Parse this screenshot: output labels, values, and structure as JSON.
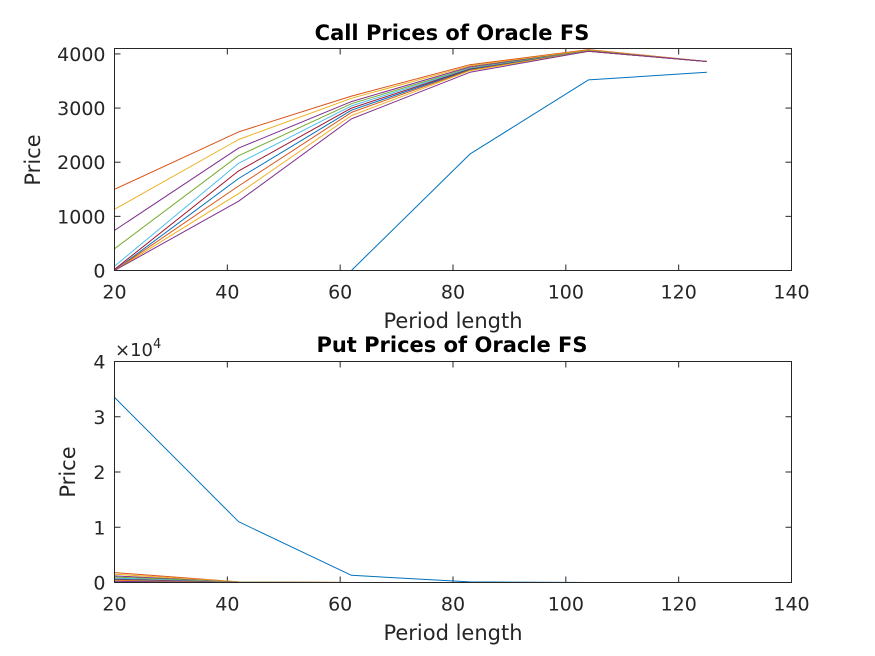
{
  "chart_data": [
    {
      "type": "line",
      "title": "Call Prices of Oracle FS",
      "xlabel": "Period length",
      "ylabel": "Price",
      "xlim": [
        20,
        140
      ],
      "ylim": [
        0,
        4100
      ],
      "x": [
        20,
        42,
        62,
        83,
        104,
        125
      ],
      "xticks": [
        20,
        40,
        60,
        80,
        100,
        120,
        140
      ],
      "xtick_labels": [
        "20",
        "40",
        "60",
        "80",
        "100",
        "120",
        "140"
      ],
      "yticks": [
        0,
        1000,
        2000,
        3000,
        4000
      ],
      "ytick_labels": [
        "0",
        "1000",
        "2000",
        "3000",
        "4000"
      ],
      "grid": false,
      "series": [
        {
          "color": "#0072BD",
          "values": [
            0,
            0,
            0,
            2150,
            3520,
            3660
          ]
        },
        {
          "color": "#D95319",
          "values": [
            1500,
            2560,
            3220,
            3800,
            4080,
            3860
          ]
        },
        {
          "color": "#EDB120",
          "values": [
            1130,
            2420,
            3180,
            3780,
            4070,
            3860
          ]
        },
        {
          "color": "#7E2F8E",
          "values": [
            740,
            2260,
            3120,
            3760,
            4060,
            3860
          ]
        },
        {
          "color": "#77AC30",
          "values": [
            400,
            2120,
            3080,
            3740,
            4060,
            3860
          ]
        },
        {
          "color": "#4DBEEE",
          "values": [
            80,
            1980,
            3040,
            3730,
            4050,
            3860
          ]
        },
        {
          "color": "#A2142F",
          "values": [
            20,
            1840,
            3000,
            3720,
            4050,
            3860
          ]
        },
        {
          "color": "#0072BD",
          "values": [
            0,
            1700,
            2960,
            3710,
            4050,
            3860
          ]
        },
        {
          "color": "#D95319",
          "values": [
            0,
            1560,
            2920,
            3700,
            4050,
            3860
          ]
        },
        {
          "color": "#EDB120",
          "values": [
            0,
            1420,
            2860,
            3690,
            4050,
            3860
          ]
        },
        {
          "color": "#7E2F8E",
          "values": [
            0,
            1280,
            2800,
            3660,
            4050,
            3860
          ]
        }
      ]
    },
    {
      "type": "line",
      "title": "Put Prices of Oracle FS",
      "xlabel": "Period length",
      "ylabel": "Price",
      "y_exponent_base": "×10",
      "y_exponent_power": "4",
      "xlim": [
        20,
        140
      ],
      "ylim": [
        0,
        4
      ],
      "x": [
        20,
        42,
        62,
        83,
        104,
        125
      ],
      "xticks": [
        20,
        40,
        60,
        80,
        100,
        120,
        140
      ],
      "xtick_labels": [
        "20",
        "40",
        "60",
        "80",
        "100",
        "120",
        "140"
      ],
      "yticks": [
        0,
        1,
        2,
        3,
        4
      ],
      "ytick_labels": [
        "0",
        "1",
        "2",
        "3",
        "4"
      ],
      "grid": false,
      "series": [
        {
          "color": "#0072BD",
          "values": [
            3.35,
            1.1,
            0.13,
            0.01,
            0.0,
            0.0
          ]
        },
        {
          "color": "#D95319",
          "values": [
            0.18,
            0.01,
            0.0,
            0.0,
            0.0,
            0.0
          ]
        },
        {
          "color": "#EDB120",
          "values": [
            0.15,
            0.01,
            0.0,
            0.0,
            0.0,
            0.0
          ]
        },
        {
          "color": "#7E2F8E",
          "values": [
            0.12,
            0.005,
            0.0,
            0.0,
            0.0,
            0.0
          ]
        },
        {
          "color": "#77AC30",
          "values": [
            0.1,
            0.005,
            0.0,
            0.0,
            0.0,
            0.0
          ]
        },
        {
          "color": "#4DBEEE",
          "values": [
            0.08,
            0.0,
            0.0,
            0.0,
            0.0,
            0.0
          ]
        },
        {
          "color": "#A2142F",
          "values": [
            0.06,
            0.0,
            0.0,
            0.0,
            0.0,
            0.0
          ]
        },
        {
          "color": "#0072BD",
          "values": [
            0.05,
            0.0,
            0.0,
            0.0,
            0.0,
            0.0
          ]
        },
        {
          "color": "#D95319",
          "values": [
            0.04,
            0.0,
            0.0,
            0.0,
            0.0,
            0.0
          ]
        },
        {
          "color": "#EDB120",
          "values": [
            0.03,
            0.0,
            0.0,
            0.0,
            0.0,
            0.0
          ]
        },
        {
          "color": "#7E2F8E",
          "values": [
            0.02,
            0.0,
            0.0,
            0.0,
            0.0,
            0.0
          ]
        }
      ]
    }
  ]
}
